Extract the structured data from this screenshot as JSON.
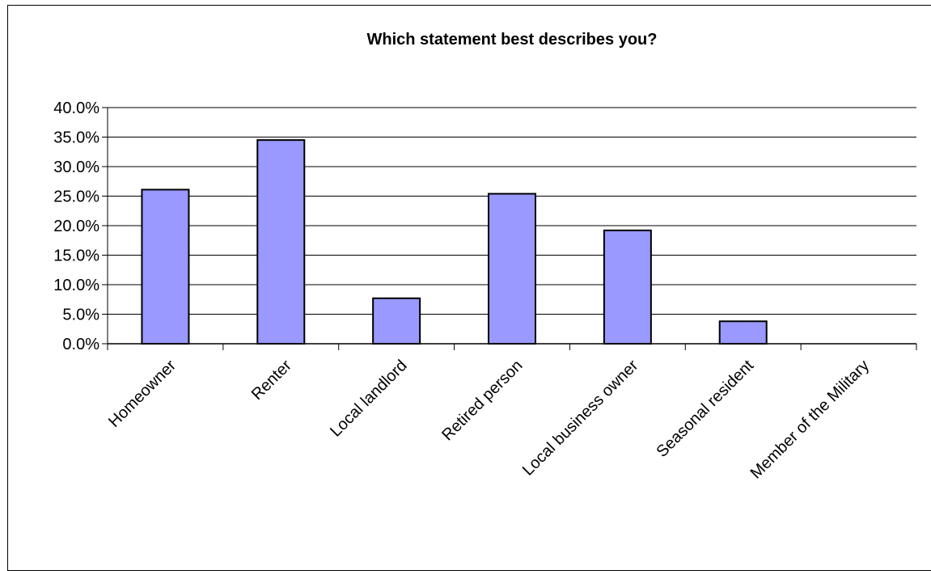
{
  "chart_data": {
    "type": "bar",
    "title": "Which statement best describes you?",
    "xlabel": "",
    "ylabel": "",
    "categories": [
      "Homeowner",
      "Renter",
      "Local landlord",
      "Retired person",
      "Local business owner",
      "Seasonal resident",
      "Member of the Military"
    ],
    "values": [
      26.1,
      34.5,
      7.7,
      25.4,
      19.2,
      3.8,
      0.0
    ],
    "ylim": [
      0,
      40
    ],
    "yticks": [
      "0.0%",
      "5.0%",
      "10.0%",
      "15.0%",
      "20.0%",
      "25.0%",
      "30.0%",
      "35.0%",
      "40.0%"
    ],
    "grid": true,
    "legend": "none",
    "colors": {
      "bar_fill": "#9999ff",
      "bar_stroke": "#000000",
      "grid": "#000000",
      "axis": "#000000"
    }
  }
}
